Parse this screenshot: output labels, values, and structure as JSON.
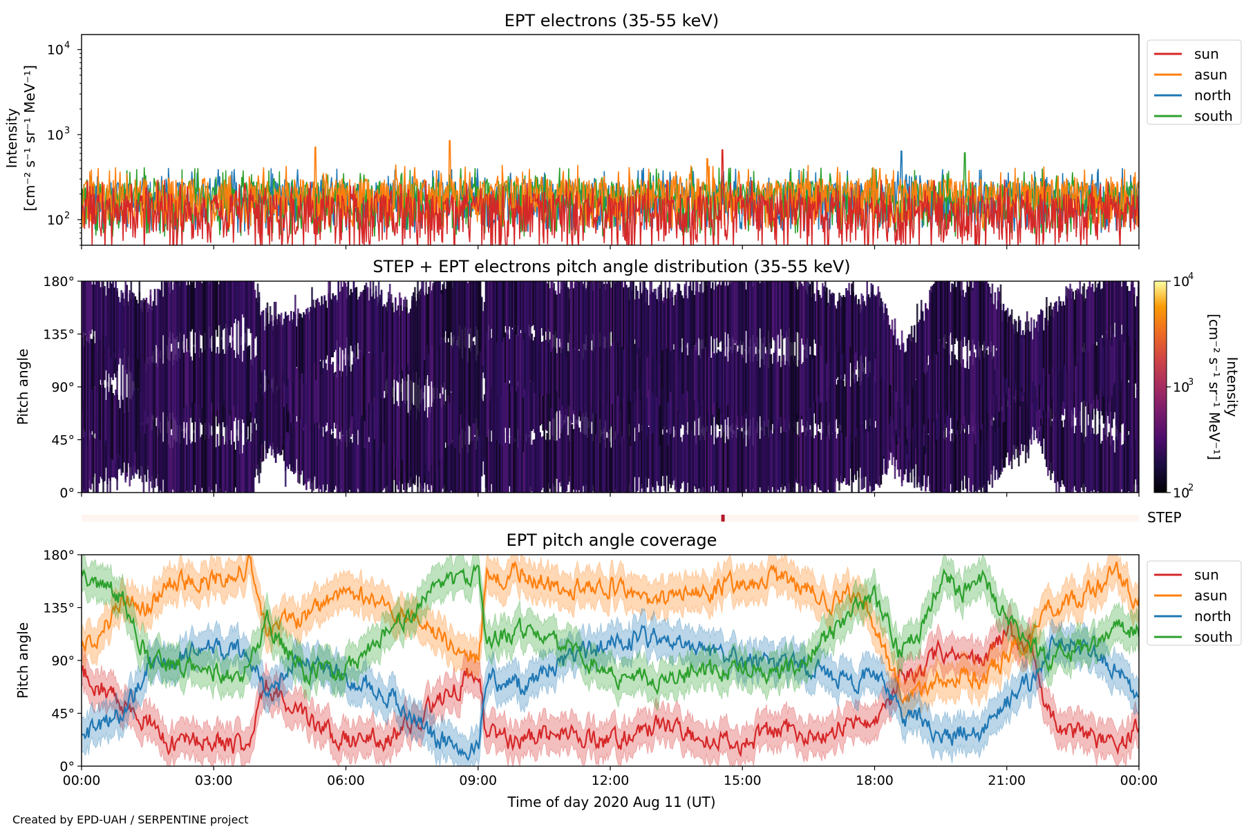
{
  "credit": "Created by EPD-UAH / SERPENTINE project",
  "xlabel": "Time of day 2020 Aug 11 (UT)",
  "x_ticks": [
    "00:00",
    "03:00",
    "06:00",
    "09:00",
    "12:00",
    "15:00",
    "18:00",
    "21:00",
    "00:00"
  ],
  "colors": {
    "sun": "#d62728",
    "asun": "#ff7f0e",
    "north": "#1f77b4",
    "south": "#2ca02c",
    "step": "#b2182b",
    "pad": "#3a0f6b"
  },
  "chart_data": [
    {
      "type": "line",
      "title": "EPT electrons (35-55 keV)",
      "ylabel_line1": "Intensity",
      "ylabel_line2": "[cm⁻² s⁻¹ sr⁻¹ MeV⁻¹]",
      "yscale": "log",
      "ylim": [
        50,
        15000
      ],
      "y_ticks": [
        {
          "base": "10",
          "exp": "2"
        },
        {
          "base": "10",
          "exp": "3"
        },
        {
          "base": "10",
          "exp": "4"
        }
      ],
      "x_range_hours": [
        0,
        24
      ],
      "legend_position": "outside-right-top",
      "series": [
        {
          "name": "sun",
          "baseline": 120,
          "spread": 160,
          "peaks": [
            [
              14.55,
              660
            ]
          ]
        },
        {
          "name": "asun",
          "baseline": 220,
          "spread": 230,
          "peaks": [
            [
              5.3,
              710
            ],
            [
              8.35,
              850
            ],
            [
              14.2,
              520
            ]
          ]
        },
        {
          "name": "north",
          "baseline": 200,
          "spread": 210,
          "peaks": [
            [
              18.6,
              640
            ]
          ]
        },
        {
          "name": "south",
          "baseline": 180,
          "spread": 220,
          "peaks": [
            [
              20.05,
              610
            ]
          ]
        }
      ]
    },
    {
      "type": "heatmap",
      "title": "STEP + EPT electrons pitch angle distribution (35-55 keV)",
      "ylabel": "Pitch angle",
      "ylim": [
        0,
        180
      ],
      "y_ticks": [
        "0°",
        "45°",
        "90°",
        "135°",
        "180°"
      ],
      "colorbar": {
        "label_line1": "Intensity",
        "label_line2": "[cm⁻² s⁻¹ sr⁻¹ MeV⁻¹]",
        "scale": "log",
        "range": [
          100,
          10000
        ],
        "ticks": [
          {
            "base": "10",
            "exp": "2"
          },
          {
            "base": "10",
            "exp": "3"
          },
          {
            "base": "10",
            "exp": "4"
          }
        ],
        "colormap": "inferno"
      },
      "note": "dense low-intensity coverage (~10^2) mostly dark purple, white gaps where no data"
    },
    {
      "type": "heatmap",
      "label": "STEP",
      "event_hour": 14.55
    },
    {
      "type": "line",
      "title": "EPT pitch angle coverage",
      "ylabel": "Pitch angle",
      "ylim": [
        0,
        180
      ],
      "y_ticks": [
        "0°",
        "45°",
        "90°",
        "135°",
        "180°"
      ],
      "x_range_hours": [
        0,
        24
      ],
      "legend_position": "outside-right-top",
      "series": [
        {
          "name": "sun",
          "points": [
            [
              0,
              80
            ],
            [
              1,
              50
            ],
            [
              1.5,
              40
            ],
            [
              2,
              20
            ],
            [
              3,
              25
            ],
            [
              3.8,
              15
            ],
            [
              4.2,
              70
            ],
            [
              5,
              40
            ],
            [
              6,
              20
            ],
            [
              7,
              25
            ],
            [
              8,
              50
            ],
            [
              9,
              85
            ],
            [
              9.2,
              25
            ],
            [
              10,
              20
            ],
            [
              11,
              30
            ],
            [
              12,
              20
            ],
            [
              13,
              35
            ],
            [
              14,
              25
            ],
            [
              15,
              20
            ],
            [
              16,
              30
            ],
            [
              17,
              25
            ],
            [
              17.5,
              40
            ],
            [
              18,
              30
            ],
            [
              18.6,
              80
            ],
            [
              19,
              75
            ],
            [
              19.5,
              100
            ],
            [
              20,
              85
            ],
            [
              20.5,
              90
            ],
            [
              21,
              115
            ],
            [
              21.5,
              105
            ],
            [
              22,
              40
            ],
            [
              22.5,
              30
            ],
            [
              23,
              25
            ],
            [
              23.5,
              15
            ],
            [
              24,
              35
            ]
          ]
        },
        {
          "name": "asun",
          "points": [
            [
              0,
              100
            ],
            [
              1,
              140
            ],
            [
              1.5,
              135
            ],
            [
              2,
              155
            ],
            [
              3,
              160
            ],
            [
              3.8,
              170
            ],
            [
              4.2,
              115
            ],
            [
              5,
              125
            ],
            [
              6,
              150
            ],
            [
              7,
              135
            ],
            [
              8,
              115
            ],
            [
              9,
              90
            ],
            [
              9.2,
              160
            ],
            [
              10,
              165
            ],
            [
              11,
              150
            ],
            [
              12,
              155
            ],
            [
              13,
              140
            ],
            [
              14,
              150
            ],
            [
              15,
              155
            ],
            [
              16,
              160
            ],
            [
              17,
              140
            ],
            [
              17.5,
              145
            ],
            [
              18,
              125
            ],
            [
              18.6,
              60
            ],
            [
              19,
              60
            ],
            [
              19.5,
              80
            ],
            [
              20,
              75
            ],
            [
              20.5,
              75
            ],
            [
              21,
              95
            ],
            [
              21.5,
              110
            ],
            [
              22,
              130
            ],
            [
              22.5,
              140
            ],
            [
              23,
              150
            ],
            [
              23.5,
              165
            ],
            [
              24,
              140
            ]
          ]
        },
        {
          "name": "north",
          "points": [
            [
              0,
              25
            ],
            [
              1,
              45
            ],
            [
              1.5,
              85
            ],
            [
              2,
              90
            ],
            [
              3,
              100
            ],
            [
              3.8,
              95
            ],
            [
              4.2,
              60
            ],
            [
              5,
              90
            ],
            [
              6,
              75
            ],
            [
              7,
              60
            ],
            [
              8,
              25
            ],
            [
              9,
              15
            ],
            [
              9.2,
              75
            ],
            [
              10,
              70
            ],
            [
              11,
              90
            ],
            [
              12,
              105
            ],
            [
              13,
              110
            ],
            [
              14,
              100
            ],
            [
              15,
              90
            ],
            [
              16,
              85
            ],
            [
              17,
              80
            ],
            [
              17.5,
              70
            ],
            [
              18,
              85
            ],
            [
              18.6,
              40
            ],
            [
              19,
              40
            ],
            [
              19.5,
              20
            ],
            [
              20,
              30
            ],
            [
              20.5,
              30
            ],
            [
              21,
              55
            ],
            [
              21.5,
              70
            ],
            [
              22,
              100
            ],
            [
              22.5,
              105
            ],
            [
              23,
              95
            ],
            [
              23.5,
              85
            ],
            [
              24,
              60
            ]
          ]
        },
        {
          "name": "south",
          "points": [
            [
              0,
              165
            ],
            [
              1,
              140
            ],
            [
              1.5,
              90
            ],
            [
              2,
              85
            ],
            [
              3,
              80
            ],
            [
              3.8,
              80
            ],
            [
              4.2,
              125
            ],
            [
              5,
              80
            ],
            [
              6,
              80
            ],
            [
              7,
              115
            ],
            [
              8,
              150
            ],
            [
              9,
              165
            ],
            [
              9.2,
              110
            ],
            [
              10,
              115
            ],
            [
              11,
              100
            ],
            [
              12,
              75
            ],
            [
              13,
              75
            ],
            [
              14,
              80
            ],
            [
              15,
              85
            ],
            [
              16,
              80
            ],
            [
              17,
              110
            ],
            [
              17.5,
              130
            ],
            [
              18,
              145
            ],
            [
              18.6,
              95
            ],
            [
              19,
              115
            ],
            [
              19.5,
              160
            ],
            [
              20,
              150
            ],
            [
              20.5,
              155
            ],
            [
              21,
              125
            ],
            [
              21.5,
              105
            ],
            [
              22,
              90
            ],
            [
              22.5,
              95
            ],
            [
              23,
              105
            ],
            [
              23.5,
              115
            ],
            [
              24,
              115
            ]
          ]
        }
      ]
    }
  ]
}
